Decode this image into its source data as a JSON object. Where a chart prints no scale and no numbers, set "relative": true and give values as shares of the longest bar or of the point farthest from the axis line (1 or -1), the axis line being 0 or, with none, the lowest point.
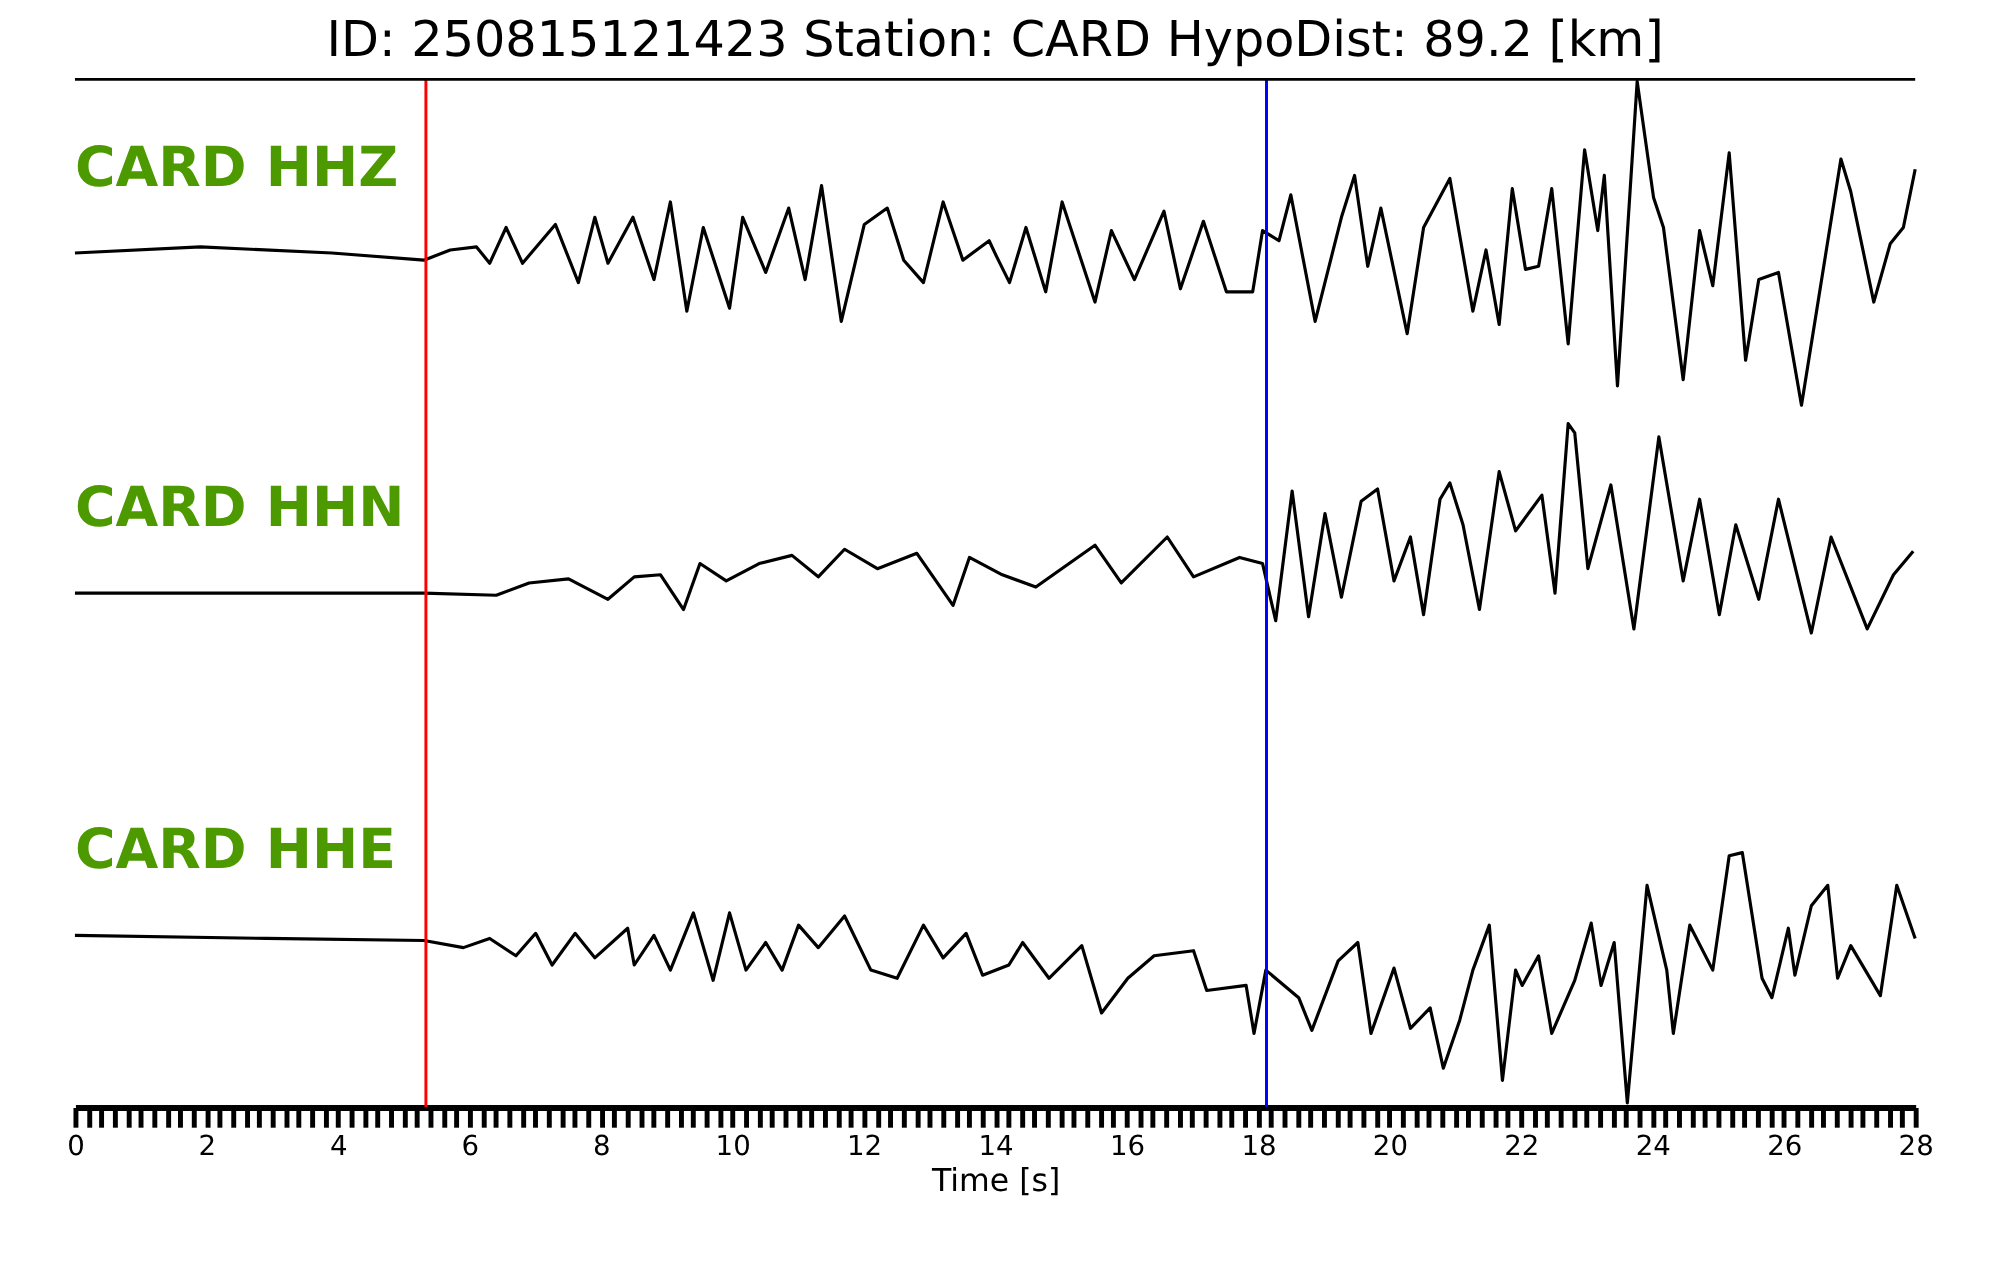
{
  "chart_data": {
    "type": "line",
    "title": "ID: 250815121423   Station: CARD   HypoDist:    89.2 [km]",
    "relative": true,
    "xlim": [
      0,
      28
    ],
    "xlabel": "Time [s]",
    "series": [
      {
        "name": "CARD HHZ",
        "color": "#000000",
        "x": [
          0,
          1.91,
          3.91,
          5.31,
          5.71,
          6.11,
          6.31,
          6.56,
          6.81,
          7.31,
          7.66,
          7.91,
          8.11,
          8.49,
          8.81,
          9.06,
          9.31,
          9.56,
          9.96,
          10.16,
          10.51,
          10.86,
          11.11,
          11.36,
          11.66,
          12.01,
          12.36,
          12.61,
          12.91,
          13.21,
          13.51,
          13.91,
          14.02,
          14.22,
          14.47,
          14.77,
          15.02,
          15.52,
          15.77,
          16.12,
          16.57,
          16.82,
          17.17,
          17.52,
          17.92,
          18.07,
          18.32,
          18.5,
          18.87,
          19.27,
          19.47,
          19.67,
          19.87,
          20.27,
          20.52,
          20.92,
          21.27,
          21.47,
          21.67,
          21.87,
          22.07,
          22.27,
          22.47,
          22.72,
          22.97,
          23.17,
          23.27,
          23.47,
          23.77,
          24.02,
          24.17,
          24.47,
          24.72,
          24.92,
          25.17,
          25.42,
          25.62,
          25.92,
          26.27,
          26.87,
          27.02,
          27.37,
          27.62,
          27.82,
          28
        ],
        "values": [
          0.832,
          0.838,
          0.832,
          0.825,
          0.835,
          0.838,
          0.822,
          0.857,
          0.822,
          0.86,
          0.803,
          0.867,
          0.822,
          0.867,
          0.806,
          0.882,
          0.775,
          0.857,
          0.778,
          0.867,
          0.813,
          0.876,
          0.806,
          0.898,
          0.765,
          0.86,
          0.876,
          0.825,
          0.803,
          0.882,
          0.825,
          0.844,
          0.829,
          0.803,
          0.857,
          0.794,
          0.882,
          0.784,
          0.854,
          0.806,
          0.873,
          0.797,
          0.863,
          0.794,
          0.794,
          0.854,
          0.844,
          0.889,
          0.765,
          0.867,
          0.908,
          0.819,
          0.876,
          0.753,
          0.857,
          0.905,
          0.775,
          0.835,
          0.762,
          0.895,
          0.816,
          0.819,
          0.895,
          0.743,
          0.933,
          0.854,
          0.908,
          0.702,
          1,
          0.886,
          0.857,
          0.708,
          0.854,
          0.8,
          0.93,
          0.727,
          0.806,
          0.813,
          0.683,
          0.924,
          0.892,
          0.784,
          0.841,
          0.857,
          0.914
        ]
      },
      {
        "name": "CARD HHN",
        "color": "#000000",
        "x": [
          0,
          2.91,
          5.31,
          6.41,
          6.91,
          7.51,
          8.11,
          8.51,
          8.91,
          9.26,
          9.51,
          9.91,
          10.41,
          10.91,
          11.31,
          11.71,
          12.21,
          12.81,
          13.36,
          13.61,
          14.11,
          14.62,
          15.52,
          15.92,
          16.62,
          17.02,
          17.72,
          18.07,
          18.27,
          18.52,
          18.77,
          19.02,
          19.27,
          19.57,
          19.82,
          20.07,
          20.32,
          20.52,
          20.77,
          20.92,
          21.12,
          21.37,
          21.67,
          21.92,
          22.32,
          22.52,
          22.72,
          22.82,
          23.02,
          23.37,
          23.72,
          24.1,
          24.47,
          24.72,
          25.02,
          25.27,
          25.62,
          25.92,
          26.42,
          26.72,
          27.27,
          27.67,
          27.97
        ],
        "values": [
          0.499,
          0.499,
          0.499,
          0.497,
          0.509,
          0.513,
          0.493,
          0.515,
          0.517,
          0.483,
          0.528,
          0.511,
          0.528,
          0.536,
          0.515,
          0.542,
          0.523,
          0.538,
          0.487,
          0.534,
          0.517,
          0.505,
          0.546,
          0.509,
          0.554,
          0.515,
          0.534,
          0.528,
          0.472,
          0.599,
          0.476,
          0.577,
          0.495,
          0.589,
          0.601,
          0.511,
          0.554,
          0.478,
          0.591,
          0.607,
          0.566,
          0.483,
          0.618,
          0.56,
          0.595,
          0.499,
          0.665,
          0.656,
          0.523,
          0.605,
          0.464,
          0.652,
          0.511,
          0.591,
          0.478,
          0.566,
          0.493,
          0.591,
          0.46,
          0.554,
          0.464,
          0.517,
          0.54
        ]
      },
      {
        "name": "CARD HHE",
        "color": "#000000",
        "x": [
          0,
          2.91,
          5.31,
          5.91,
          6.31,
          6.71,
          7.01,
          7.26,
          7.61,
          7.91,
          8.41,
          8.51,
          8.81,
          9.06,
          9.41,
          9.71,
          9.96,
          10.21,
          10.51,
          10.76,
          11.01,
          11.31,
          11.71,
          12.11,
          12.51,
          12.91,
          13.21,
          13.56,
          13.81,
          14.21,
          14.42,
          14.82,
          15.32,
          15.62,
          16.02,
          16.42,
          17.02,
          17.22,
          17.82,
          17.94,
          18.12,
          18.62,
          18.82,
          19.22,
          19.52,
          19.72,
          20.07,
          20.32,
          20.62,
          20.82,
          21.07,
          21.27,
          21.52,
          21.72,
          21.92,
          22.02,
          22.27,
          22.47,
          22.82,
          23.07,
          23.22,
          23.42,
          23.62,
          23.92,
          24.22,
          24.32,
          24.57,
          24.92,
          25.17,
          25.37,
          25.67,
          25.82,
          26.07,
          26.17,
          26.42,
          26.67,
          26.82,
          27.02,
          27.47,
          27.72,
          28
        ],
        "values": [
          0.164,
          0.161,
          0.159,
          0.152,
          0.161,
          0.144,
          0.166,
          0.135,
          0.166,
          0.142,
          0.171,
          0.135,
          0.164,
          0.13,
          0.186,
          0.12,
          0.186,
          0.13,
          0.157,
          0.13,
          0.174,
          0.152,
          0.183,
          0.13,
          0.122,
          0.174,
          0.142,
          0.166,
          0.125,
          0.135,
          0.157,
          0.122,
          0.154,
          0.088,
          0.122,
          0.144,
          0.149,
          0.11,
          0.115,
          0.068,
          0.13,
          0.103,
          0.071,
          0.139,
          0.157,
          0.068,
          0.132,
          0.073,
          0.093,
          0.034,
          0.081,
          0.13,
          0.174,
          0.022,
          0.13,
          0.115,
          0.144,
          0.068,
          0.12,
          0.176,
          0.115,
          0.157,
          0,
          0.213,
          0.13,
          0.068,
          0.174,
          0.13,
          0.242,
          0.245,
          0.122,
          0.103,
          0.171,
          0.125,
          0.193,
          0.213,
          0.122,
          0.154,
          0.105,
          0.213,
          0.161
        ]
      }
    ],
    "ref_lines": [
      {
        "axis": "x",
        "value": 5.34,
        "color": "#ff0000"
      },
      {
        "axis": "x",
        "value": 18.13,
        "color": "#0000ff"
      }
    ],
    "xticks": [
      0,
      {
        "value": 0.2,
        "label": null
      },
      {
        "value": 0.4,
        "label": null
      },
      {
        "value": 0.6,
        "label": null
      },
      {
        "value": 0.8,
        "label": null
      },
      {
        "value": 1,
        "label": null
      },
      {
        "value": 1.2,
        "label": null
      },
      {
        "value": 1.4,
        "label": null
      },
      {
        "value": 1.6,
        "label": null
      },
      {
        "value": 1.8,
        "label": null
      },
      2,
      {
        "value": 2.2,
        "label": null
      },
      {
        "value": 2.4,
        "label": null
      },
      {
        "value": 2.6,
        "label": null
      },
      {
        "value": 2.8,
        "label": null
      },
      {
        "value": 3,
        "label": null
      },
      {
        "value": 3.2,
        "label": null
      },
      {
        "value": 3.4,
        "label": null
      },
      {
        "value": 3.6,
        "label": null
      },
      {
        "value": 3.8,
        "label": null
      },
      4,
      {
        "value": 4.2,
        "label": null
      },
      {
        "value": 4.4,
        "label": null
      },
      {
        "value": 4.6,
        "label": null
      },
      {
        "value": 4.8,
        "label": null
      },
      {
        "value": 5,
        "label": null
      },
      {
        "value": 5.2,
        "label": null
      },
      {
        "value": 5.4,
        "label": null
      },
      {
        "value": 5.6,
        "label": null
      },
      {
        "value": 5.8,
        "label": null
      },
      6,
      {
        "value": 6.2,
        "label": null
      },
      {
        "value": 6.4,
        "label": null
      },
      {
        "value": 6.6,
        "label": null
      },
      {
        "value": 6.8,
        "label": null
      },
      {
        "value": 7,
        "label": null
      },
      {
        "value": 7.2,
        "label": null
      },
      {
        "value": 7.4,
        "label": null
      },
      {
        "value": 7.6,
        "label": null
      },
      {
        "value": 7.8,
        "label": null
      },
      8,
      {
        "value": 8.2,
        "label": null
      },
      {
        "value": 8.4,
        "label": null
      },
      {
        "value": 8.6,
        "label": null
      },
      {
        "value": 8.8,
        "label": null
      },
      {
        "value": 9,
        "label": null
      },
      {
        "value": 9.2,
        "label": null
      },
      {
        "value": 9.4,
        "label": null
      },
      {
        "value": 9.6,
        "label": null
      },
      {
        "value": 9.8,
        "label": null
      },
      10,
      {
        "value": 10.2,
        "label": null
      },
      {
        "value": 10.4,
        "label": null
      },
      {
        "value": 10.6,
        "label": null
      },
      {
        "value": 10.8,
        "label": null
      },
      {
        "value": 11,
        "label": null
      },
      {
        "value": 11.2,
        "label": null
      },
      {
        "value": 11.4,
        "label": null
      },
      {
        "value": 11.6,
        "label": null
      },
      {
        "value": 11.8,
        "label": null
      },
      12,
      {
        "value": 12.2,
        "label": null
      },
      {
        "value": 12.4,
        "label": null
      },
      {
        "value": 12.6,
        "label": null
      },
      {
        "value": 12.8,
        "label": null
      },
      {
        "value": 13,
        "label": null
      },
      {
        "value": 13.2,
        "label": null
      },
      {
        "value": 13.4,
        "label": null
      },
      {
        "value": 13.6,
        "label": null
      },
      {
        "value": 13.8,
        "label": null
      },
      14,
      {
        "value": 14.2,
        "label": null
      },
      {
        "value": 14.4,
        "label": null
      },
      {
        "value": 14.6,
        "label": null
      },
      {
        "value": 14.8,
        "label": null
      },
      {
        "value": 15,
        "label": null
      },
      {
        "value": 15.2,
        "label": null
      },
      {
        "value": 15.4,
        "label": null
      },
      {
        "value": 15.6,
        "label": null
      },
      {
        "value": 15.8,
        "label": null
      },
      16,
      {
        "value": 16.2,
        "label": null
      },
      {
        "value": 16.4,
        "label": null
      },
      {
        "value": 16.6,
        "label": null
      },
      {
        "value": 16.8,
        "label": null
      },
      {
        "value": 17,
        "label": null
      },
      {
        "value": 17.2,
        "label": null
      },
      {
        "value": 17.4,
        "label": null
      },
      {
        "value": 17.6,
        "label": null
      },
      {
        "value": 17.8,
        "label": null
      },
      18,
      {
        "value": 18.2,
        "label": null
      },
      {
        "value": 18.4,
        "label": null
      },
      {
        "value": 18.6,
        "label": null
      },
      {
        "value": 18.8,
        "label": null
      },
      {
        "value": 19,
        "label": null
      },
      {
        "value": 19.2,
        "label": null
      },
      {
        "value": 19.4,
        "label": null
      },
      {
        "value": 19.6,
        "label": null
      },
      {
        "value": 19.8,
        "label": null
      },
      20,
      {
        "value": 20.2,
        "label": null
      },
      {
        "value": 20.4,
        "label": null
      },
      {
        "value": 20.6,
        "label": null
      },
      {
        "value": 20.8,
        "label": null
      },
      {
        "value": 21,
        "label": null
      },
      {
        "value": 21.2,
        "label": null
      },
      {
        "value": 21.4,
        "label": null
      },
      {
        "value": 21.6,
        "label": null
      },
      {
        "value": 21.8,
        "label": null
      },
      22,
      {
        "value": 22.2,
        "label": null
      },
      {
        "value": 22.4,
        "label": null
      },
      {
        "value": 22.6,
        "label": null
      },
      {
        "value": 22.8,
        "label": null
      },
      {
        "value": 23,
        "label": null
      },
      {
        "value": 23.2,
        "label": null
      },
      {
        "value": 23.4,
        "label": null
      },
      {
        "value": 23.6,
        "label": null
      },
      {
        "value": 23.8,
        "label": null
      },
      24,
      {
        "value": 24.2,
        "label": null
      },
      {
        "value": 24.4,
        "label": null
      },
      {
        "value": 24.6,
        "label": null
      },
      {
        "value": 24.8,
        "label": null
      },
      {
        "value": 25,
        "label": null
      },
      {
        "value": 25.2,
        "label": null
      },
      {
        "value": 25.4,
        "label": null
      },
      {
        "value": 25.6,
        "label": null
      },
      {
        "value": 25.8,
        "label": null
      },
      26,
      {
        "value": 26.2,
        "label": null
      },
      {
        "value": 26.4,
        "label": null
      },
      {
        "value": 26.6,
        "label": null
      },
      {
        "value": 26.8,
        "label": null
      },
      {
        "value": 27,
        "label": null
      },
      {
        "value": 27.2,
        "label": null
      },
      {
        "value": 27.4,
        "label": null
      },
      {
        "value": 27.6,
        "label": null
      },
      {
        "value": 27.8,
        "label": null
      },
      28
    ]
  }
}
